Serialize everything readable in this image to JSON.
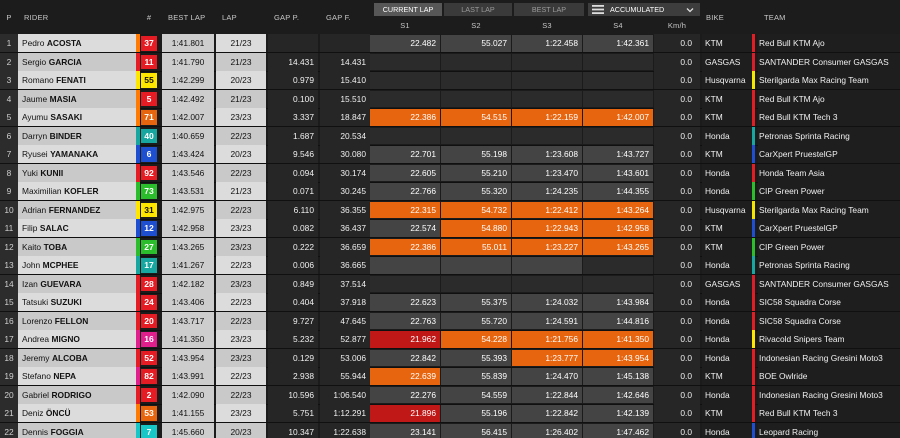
{
  "header": {
    "pos": "P",
    "rider": "RIDER",
    "num": "#",
    "best_lap": "BEST LAP",
    "lap": "LAP",
    "gap_p": "GAP P.",
    "gap_f": "GAP F.",
    "s1": "S1",
    "s2": "S2",
    "s3": "S3",
    "s4": "S4",
    "kmh": "Km/h",
    "bike": "BIKE",
    "team": "TEAM",
    "tabs": [
      "CURRENT LAP",
      "LAST LAP",
      "BEST LAP"
    ],
    "active_tab": "CURRENT LAP",
    "mode_label": "ACCUMULATED",
    "mode_icon": "bars-icon",
    "mode_chevron": "chevron-down-icon"
  },
  "colors": {
    "sector_orange": "#e8650f",
    "sector_red": "#c01717",
    "sector_grey": "#444444",
    "sector_dark": "#2b2b2b"
  },
  "rows": [
    {
      "pos": "1",
      "first": "Pedro",
      "last": "ACOSTA",
      "num": "37",
      "numbg": "#e51c24",
      "numfg": "#ffffff",
      "stripe": "#ff7a00",
      "best": "1:41.801",
      "lap": "21/23",
      "gapp": "",
      "gapf": "",
      "s1": "22.482",
      "s2": "55.027",
      "s3": "1:22.458",
      "s4": "1:42.361",
      "sc": [
        "g",
        "g",
        "g",
        "g"
      ],
      "kmh": "0.0",
      "bike": "KTM",
      "team": "Red Bull KTM Ajo",
      "tcol": "#e01e24"
    },
    {
      "pos": "2",
      "first": "Sergio",
      "last": "GARCIA",
      "num": "11",
      "numbg": "#e51c24",
      "numfg": "#ffffff",
      "stripe": "#e51c24",
      "best": "1:41.790",
      "lap": "21/23",
      "gapp": "14.431",
      "gapf": "14.431",
      "s1": "",
      "s2": "",
      "s3": "",
      "s4": "",
      "sc": [
        "d",
        "d",
        "d",
        "d"
      ],
      "kmh": "0.0",
      "bike": "GASGAS",
      "team": "SANTANDER Consumer GASGAS",
      "tcol": "#d81e2a"
    },
    {
      "pos": "3",
      "first": "Romano",
      "last": "FENATI",
      "num": "55",
      "numbg": "#ffe600",
      "numfg": "#111111",
      "stripe": "#ffe600",
      "best": "1:42.299",
      "lap": "20/23",
      "gapp": "0.979",
      "gapf": "15.410",
      "s1": "",
      "s2": "",
      "s3": "",
      "s4": "",
      "sc": [
        "d",
        "d",
        "d",
        "d"
      ],
      "kmh": "0.0",
      "bike": "Husqvarna",
      "team": "Sterilgarda Max Racing Team",
      "tcol": "#f3e600"
    },
    {
      "pos": "4",
      "first": "Jaume",
      "last": "MASIA",
      "num": "5",
      "numbg": "#e51c24",
      "numfg": "#ffffff",
      "stripe": "#ff7a00",
      "best": "1:42.492",
      "lap": "21/23",
      "gapp": "0.100",
      "gapf": "15.510",
      "s1": "",
      "s2": "",
      "s3": "",
      "s4": "",
      "sc": [
        "d",
        "d",
        "d",
        "d"
      ],
      "kmh": "0.0",
      "bike": "KTM",
      "team": "Red Bull KTM Ajo",
      "tcol": "#e01e24"
    },
    {
      "pos": "5",
      "first": "Ayumu",
      "last": "SASAKI",
      "num": "71",
      "numbg": "#e8650f",
      "numfg": "#ffffff",
      "stripe": "#ff7a00",
      "best": "1:42.007",
      "lap": "23/23",
      "gapp": "3.337",
      "gapf": "18.847",
      "s1": "22.386",
      "s2": "54.515",
      "s3": "1:22.159",
      "s4": "1:42.007",
      "sc": [
        "o",
        "o",
        "o",
        "o"
      ],
      "kmh": "0.0",
      "bike": "KTM",
      "team": "Red Bull KTM Tech 3",
      "tcol": "#e01e24"
    },
    {
      "pos": "6",
      "first": "Darryn",
      "last": "BINDER",
      "num": "40",
      "numbg": "#17a7a0",
      "numfg": "#ffffff",
      "stripe": "#17a7a0",
      "best": "1:40.659",
      "lap": "22/23",
      "gapp": "1.687",
      "gapf": "20.534",
      "s1": "",
      "s2": "",
      "s3": "",
      "s4": "",
      "sc": [
        "d",
        "d",
        "d",
        "d"
      ],
      "kmh": "0.0",
      "bike": "Honda",
      "team": "Petronas Sprinta Racing",
      "tcol": "#17a7a0"
    },
    {
      "pos": "7",
      "first": "Ryusei",
      "last": "YAMANAKA",
      "num": "6",
      "numbg": "#1f4fd1",
      "numfg": "#ffffff",
      "stripe": "#1f4fd1",
      "best": "1:43.424",
      "lap": "20/23",
      "gapp": "9.546",
      "gapf": "30.080",
      "s1": "22.701",
      "s2": "55.198",
      "s3": "1:23.608",
      "s4": "1:43.727",
      "sc": [
        "g",
        "g",
        "g",
        "g"
      ],
      "kmh": "0.0",
      "bike": "KTM",
      "team": "CarXpert PruestelGP",
      "tcol": "#1f4fd1"
    },
    {
      "pos": "8",
      "first": "Yuki",
      "last": "KUNII",
      "num": "92",
      "numbg": "#e51c24",
      "numfg": "#ffffff",
      "stripe": "#e51c24",
      "best": "1:43.546",
      "lap": "22/23",
      "gapp": "0.094",
      "gapf": "30.174",
      "s1": "22.605",
      "s2": "55.210",
      "s3": "1:23.470",
      "s4": "1:43.601",
      "sc": [
        "g",
        "g",
        "g",
        "g"
      ],
      "kmh": "0.0",
      "bike": "Honda",
      "team": "Honda Team Asia",
      "tcol": "#e01e24"
    },
    {
      "pos": "9",
      "first": "Maximilian",
      "last": "KOFLER",
      "num": "73",
      "numbg": "#2bbd2b",
      "numfg": "#ffffff",
      "stripe": "#2bbd2b",
      "best": "1:43.531",
      "lap": "21/23",
      "gapp": "0.071",
      "gapf": "30.245",
      "s1": "22.766",
      "s2": "55.320",
      "s3": "1:24.235",
      "s4": "1:44.355",
      "sc": [
        "g",
        "g",
        "g",
        "g"
      ],
      "kmh": "0.0",
      "bike": "Honda",
      "team": "CIP Green Power",
      "tcol": "#2bbd2b"
    },
    {
      "pos": "10",
      "first": "Adrian",
      "last": "FERNANDEZ",
      "num": "31",
      "numbg": "#ffe600",
      "numfg": "#111111",
      "stripe": "#ffe600",
      "best": "1:42.975",
      "lap": "22/23",
      "gapp": "6.110",
      "gapf": "36.355",
      "s1": "22.315",
      "s2": "54.732",
      "s3": "1:22.412",
      "s4": "1:43.264",
      "sc": [
        "o",
        "o",
        "o",
        "o"
      ],
      "kmh": "0.0",
      "bike": "Husqvarna",
      "team": "Sterilgarda Max Racing Team",
      "tcol": "#f3e600"
    },
    {
      "pos": "11",
      "first": "Filip",
      "last": "SALAC",
      "num": "12",
      "numbg": "#1f4fd1",
      "numfg": "#ffffff",
      "stripe": "#1f4fd1",
      "best": "1:42.958",
      "lap": "23/23",
      "gapp": "0.082",
      "gapf": "36.437",
      "s1": "22.574",
      "s2": "54.880",
      "s3": "1:22.943",
      "s4": "1:42.958",
      "sc": [
        "g",
        "o",
        "o",
        "o"
      ],
      "kmh": "0.0",
      "bike": "KTM",
      "team": "CarXpert PruestelGP",
      "tcol": "#1f4fd1"
    },
    {
      "pos": "12",
      "first": "Kaito",
      "last": "TOBA",
      "num": "27",
      "numbg": "#2bbd2b",
      "numfg": "#ffffff",
      "stripe": "#2bbd2b",
      "best": "1:43.265",
      "lap": "23/23",
      "gapp": "0.222",
      "gapf": "36.659",
      "s1": "22.386",
      "s2": "55.011",
      "s3": "1:23.227",
      "s4": "1:43.265",
      "sc": [
        "o",
        "o",
        "o",
        "o"
      ],
      "kmh": "0.0",
      "bike": "KTM",
      "team": "CIP Green Power",
      "tcol": "#2bbd2b"
    },
    {
      "pos": "13",
      "first": "John",
      "last": "MCPHEE",
      "num": "17",
      "numbg": "#17a7a0",
      "numfg": "#ffffff",
      "stripe": "#17a7a0",
      "best": "1:41.267",
      "lap": "22/23",
      "gapp": "0.006",
      "gapf": "36.665",
      "s1": "",
      "s2": "",
      "s3": "",
      "s4": "",
      "sc": [
        "g",
        "g",
        "g",
        "d"
      ],
      "kmh": "0.0",
      "bike": "Honda",
      "team": "Petronas Sprinta Racing",
      "tcol": "#17a7a0"
    },
    {
      "pos": "14",
      "first": "Izan",
      "last": "GUEVARA",
      "num": "28",
      "numbg": "#e51c24",
      "numfg": "#ffffff",
      "stripe": "#e51c24",
      "best": "1:42.182",
      "lap": "23/23",
      "gapp": "0.849",
      "gapf": "37.514",
      "s1": "",
      "s2": "",
      "s3": "",
      "s4": "",
      "sc": [
        "d",
        "d",
        "d",
        "d"
      ],
      "kmh": "0.0",
      "bike": "GASGAS",
      "team": "SANTANDER Consumer GASGAS",
      "tcol": "#d81e2a"
    },
    {
      "pos": "15",
      "first": "Tatsuki",
      "last": "SUZUKI",
      "num": "24",
      "numbg": "#e51c24",
      "numfg": "#ffffff",
      "stripe": "#e51c24",
      "best": "1:43.406",
      "lap": "22/23",
      "gapp": "0.404",
      "gapf": "37.918",
      "s1": "22.623",
      "s2": "55.375",
      "s3": "1:24.032",
      "s4": "1:43.984",
      "sc": [
        "g",
        "g",
        "g",
        "g"
      ],
      "kmh": "0.0",
      "bike": "Honda",
      "team": "SIC58 Squadra Corse",
      "tcol": "#e01e24"
    },
    {
      "pos": "16",
      "first": "Lorenzo",
      "last": "FELLON",
      "num": "20",
      "numbg": "#e51c24",
      "numfg": "#ffffff",
      "stripe": "#e51c24",
      "best": "1:43.717",
      "lap": "22/23",
      "gapp": "9.727",
      "gapf": "47.645",
      "s1": "22.763",
      "s2": "55.720",
      "s3": "1:24.591",
      "s4": "1:44.816",
      "sc": [
        "g",
        "g",
        "g",
        "g"
      ],
      "kmh": "0.0",
      "bike": "Honda",
      "team": "SIC58 Squadra Corse",
      "tcol": "#e01e24"
    },
    {
      "pos": "17",
      "first": "Andrea",
      "last": "MIGNO",
      "num": "16",
      "numbg": "#e01e8c",
      "numfg": "#ffffff",
      "stripe": "#e01e8c",
      "best": "1:41.350",
      "lap": "23/23",
      "gapp": "5.232",
      "gapf": "52.877",
      "s1": "21.962",
      "s2": "54.228",
      "s3": "1:21.756",
      "s4": "1:41.350",
      "sc": [
        "r",
        "o",
        "o",
        "o"
      ],
      "kmh": "0.0",
      "bike": "Honda",
      "team": "Rivacold Snipers Team",
      "tcol": "#ffe600"
    },
    {
      "pos": "18",
      "first": "Jeremy",
      "last": "ALCOBA",
      "num": "52",
      "numbg": "#e51c24",
      "numfg": "#ffffff",
      "stripe": "#e51c24",
      "best": "1:43.954",
      "lap": "23/23",
      "gapp": "0.129",
      "gapf": "53.006",
      "s1": "22.842",
      "s2": "55.393",
      "s3": "1:23.777",
      "s4": "1:43.954",
      "sc": [
        "g",
        "g",
        "o",
        "o"
      ],
      "kmh": "0.0",
      "bike": "Honda",
      "team": "Indonesian Racing Gresini Moto3",
      "tcol": "#e01e24"
    },
    {
      "pos": "19",
      "first": "Stefano",
      "last": "NEPA",
      "num": "82",
      "numbg": "#e51c24",
      "numfg": "#ffffff",
      "stripe": "#e01e8c",
      "best": "1:43.991",
      "lap": "22/23",
      "gapp": "2.938",
      "gapf": "55.944",
      "s1": "22.639",
      "s2": "55.839",
      "s3": "1:24.470",
      "s4": "1:45.138",
      "sc": [
        "o",
        "g",
        "g",
        "g"
      ],
      "kmh": "0.0",
      "bike": "KTM",
      "team": "BOE Owlride",
      "tcol": "#e01e24"
    },
    {
      "pos": "20",
      "first": "Gabriel",
      "last": "RODRIGO",
      "num": "2",
      "numbg": "#e51c24",
      "numfg": "#ffffff",
      "stripe": "#e51c24",
      "best": "1:42.090",
      "lap": "22/23",
      "gapp": "10.596",
      "gapf": "1:06.540",
      "s1": "22.276",
      "s2": "54.559",
      "s3": "1:22.844",
      "s4": "1:42.646",
      "sc": [
        "g",
        "g",
        "g",
        "g"
      ],
      "kmh": "0.0",
      "bike": "Honda",
      "team": "Indonesian Racing Gresini Moto3",
      "tcol": "#e01e24"
    },
    {
      "pos": "21",
      "first": "Deniz",
      "last": "ÖNCÜ",
      "num": "53",
      "numbg": "#e8650f",
      "numfg": "#ffffff",
      "stripe": "#ff7a00",
      "best": "1:41.155",
      "lap": "23/23",
      "gapp": "5.751",
      "gapf": "1:12.291",
      "s1": "21.896",
      "s2": "55.196",
      "s3": "1:22.842",
      "s4": "1:42.139",
      "sc": [
        "r",
        "g",
        "g",
        "g"
      ],
      "kmh": "0.0",
      "bike": "KTM",
      "team": "Red Bull KTM Tech 3",
      "tcol": "#e01e24"
    },
    {
      "pos": "22",
      "first": "Dennis",
      "last": "FOGGIA",
      "num": "7",
      "numbg": "#17c7c7",
      "numfg": "#ffffff",
      "stripe": "#17c7c7",
      "best": "1:45.660",
      "lap": "20/23",
      "gapp": "10.347",
      "gapf": "1:22.638",
      "s1": "23.141",
      "s2": "56.415",
      "s3": "1:26.402",
      "s4": "1:47.462",
      "sc": [
        "g",
        "g",
        "g",
        "g"
      ],
      "kmh": "0.0",
      "bike": "Honda",
      "team": "Leopard Racing",
      "tcol": "#1f4fd1"
    }
  ]
}
